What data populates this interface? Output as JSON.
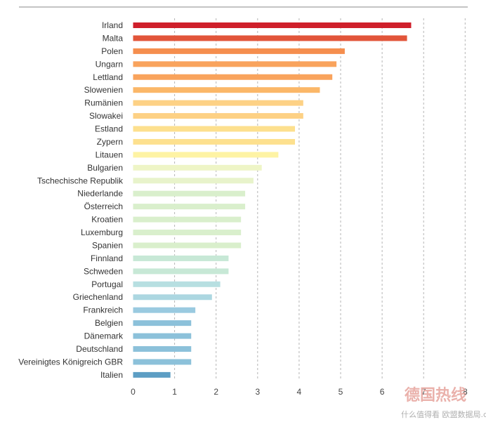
{
  "chart_data": {
    "type": "bar",
    "orientation": "horizontal",
    "title": "",
    "xlabel": "",
    "ylabel": "",
    "xlim": [
      0,
      8
    ],
    "ticks": [
      "0",
      "1",
      "2",
      "3",
      "4",
      "5",
      "6",
      "7",
      "8"
    ],
    "grid": "vertical dashed",
    "categories": [
      "Irland",
      "Malta",
      "Polen",
      "Ungarn",
      "Lettland",
      "Slowenien",
      "Rumänien",
      "Slowakei",
      "Estland",
      "Zypern",
      "Litauen",
      "Bulgarien",
      "Tschechische Republik",
      "Niederlande",
      "Österreich",
      "Kroatien",
      "Luxemburg",
      "Spanien",
      "Finnland",
      "Schweden",
      "Portugal",
      "Griechenland",
      "Frankreich",
      "Belgien",
      "Dänemark",
      "Deutschland",
      "Vereinigtes Königreich GBR",
      "Italien"
    ],
    "values": [
      6.7,
      6.6,
      5.1,
      4.9,
      4.8,
      4.5,
      4.1,
      4.1,
      3.9,
      3.9,
      3.5,
      3.1,
      2.9,
      2.7,
      2.7,
      2.6,
      2.6,
      2.6,
      2.3,
      2.3,
      2.1,
      1.9,
      1.5,
      1.4,
      1.4,
      1.4,
      1.4,
      0.9
    ],
    "colors": [
      "#cf1f2b",
      "#e2553a",
      "#f58e4e",
      "#f9a35c",
      "#f9a35c",
      "#fbb768",
      "#fdd185",
      "#fdd185",
      "#fde08e",
      "#fde08e",
      "#fef3a4",
      "#eef5c6",
      "#e8f3cb",
      "#d9efcc",
      "#d9efcc",
      "#d9efcc",
      "#d9efcc",
      "#d9efcc",
      "#c7e8d6",
      "#c7e8d6",
      "#b7dfe1",
      "#acd7e1",
      "#9acae0",
      "#8cc1da",
      "#8cc1da",
      "#8cc1da",
      "#8cc1da",
      "#5d9ec4"
    ]
  },
  "watermark": {
    "brand": "德国热线",
    "sub": "什么值得看 欧盟数据局.de"
  }
}
